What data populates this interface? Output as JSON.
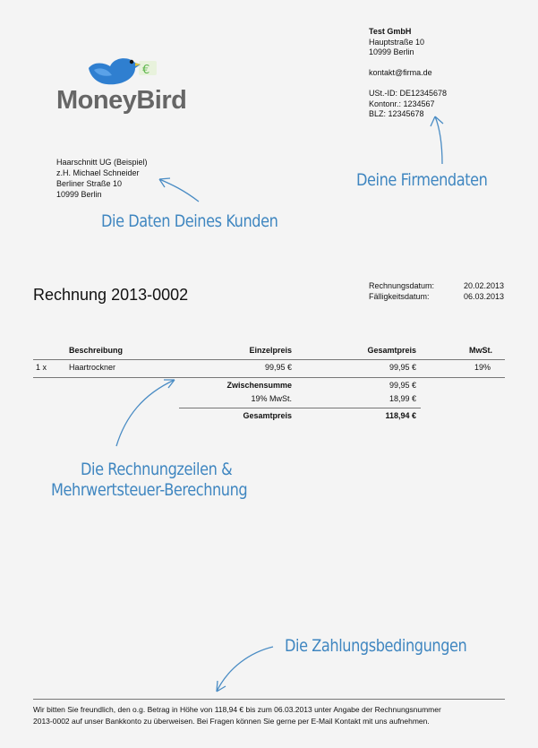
{
  "logo": {
    "text": "MoneyBird",
    "icon": "bird-euro-icon"
  },
  "company": {
    "name": "Test GmbH",
    "street": "Hauptstraße 10",
    "city": "10999 Berlin",
    "email": "kontakt@firma.de",
    "vat_id": "USt.-ID: DE12345678",
    "account": "Kontonr.: 1234567",
    "blz": "BLZ: 12345678"
  },
  "client": {
    "name": "Haarschnitt UG (Beispiel)",
    "contact": "z.H. Michael Schneider",
    "street": "Berliner Straße 10",
    "city": "10999 Berlin"
  },
  "annotations": {
    "client": "Die Daten Deines Kunden",
    "company": "Deine Firmendaten",
    "lines1": "Die Rechnungzeilen &",
    "lines2": "Mehrwertsteuer-Berechnung",
    "payment": "Die Zahlungsbedingungen",
    "color": "#3f86c0"
  },
  "invoice": {
    "title": "Rechnung 2013-0002",
    "date_label": "Rechnungsdatum:",
    "date": "20.02.2013",
    "due_label": "Fälligkeitsdatum:",
    "due": "06.03.2013"
  },
  "table": {
    "headers": {
      "description": "Beschreibung",
      "unit_price": "Einzelpreis",
      "total": "Gesamtpreis",
      "vat": "MwSt."
    },
    "rows": [
      {
        "qty": "1 x",
        "description": "Haartrockner",
        "unit_price": "99,95 €",
        "total": "99,95 €",
        "vat": "19%"
      }
    ],
    "subtotal_label": "Zwischensumme",
    "subtotal": "99,95 €",
    "vat_label": "19% MwSt.",
    "vat_amount": "18,99 €",
    "grand_label": "Gesamtpreis",
    "grand_total": "118,94 €"
  },
  "footer": {
    "line1": "Wir bitten Sie freundlich, den o.g. Betrag in Höhe von 118,94 € bis zum 06.03.2013 unter Angabe der Rechnungsnummer",
    "line2": "2013-0002 auf unser Bankkonto zu überweisen. Bei Fragen können Sie gerne per E-Mail Kontakt mit uns aufnehmen."
  }
}
